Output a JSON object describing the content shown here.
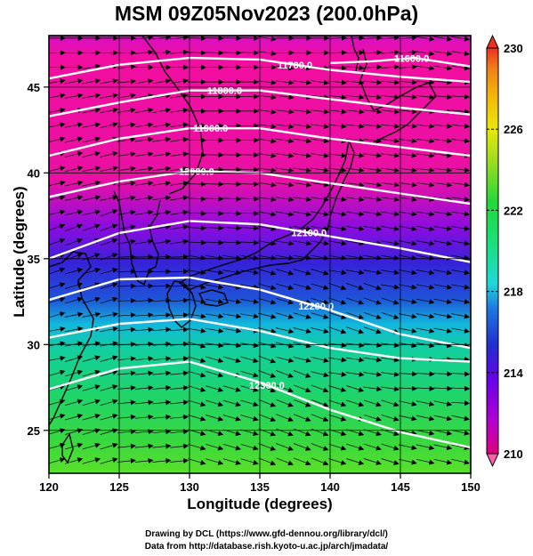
{
  "title": "MSM 09Z05Nov2023 (200.0hPa)",
  "xlabel": "Longitude (degrees)",
  "ylabel": "Latitude  (degrees)",
  "credits": {
    "line1": "Drawing by DCL (https://www.gfd-dennou.org/library/dcl/)",
    "line2": "Data from http://database.rish.kyoto-u.ac.jp/arch/jmadata/"
  },
  "chart_data": {
    "type": "heatmap",
    "xlim": [
      120,
      150
    ],
    "ylim": [
      22.5,
      48
    ],
    "x_ticks": [
      "120",
      "125",
      "130",
      "135",
      "140",
      "145",
      "150"
    ],
    "y_ticks": [
      "25",
      "30",
      "35",
      "40",
      "45"
    ],
    "grid": true,
    "colorbar": {
      "min": 210,
      "max": 230,
      "ticks": [
        "230",
        "226",
        "222",
        "218",
        "214",
        "210"
      ],
      "colors": [
        "#e0007c",
        "#b000d0",
        "#6a00e8",
        "#2030d0",
        "#1f7ae0",
        "#20d8d8",
        "#19e07a",
        "#22d83a",
        "#9cdc20",
        "#e8e80a",
        "#f2b80a",
        "#f08018",
        "#ee3020"
      ]
    },
    "contours": [
      {
        "label": "11600.0",
        "points": [
          [
            140,
            46.4
          ],
          [
            143,
            46.5
          ],
          [
            146,
            46.7
          ],
          [
            150,
            46.2
          ]
        ]
      },
      {
        "label": "11700.0",
        "points": [
          [
            120,
            45.5
          ],
          [
            125,
            46.3
          ],
          [
            130,
            46.7
          ],
          [
            135,
            46.6
          ],
          [
            140,
            46.0
          ],
          [
            145,
            45.6
          ],
          [
            150,
            45.3
          ]
        ]
      },
      {
        "label": "11800.0",
        "points": [
          [
            120,
            43.3
          ],
          [
            125,
            44.1
          ],
          [
            130,
            44.8
          ],
          [
            135,
            44.8
          ],
          [
            140,
            44.3
          ],
          [
            145,
            43.8
          ],
          [
            150,
            43.4
          ]
        ]
      },
      {
        "label": "11900.0",
        "points": [
          [
            120,
            41.0
          ],
          [
            125,
            42.0
          ],
          [
            130,
            42.6
          ],
          [
            135,
            42.6
          ],
          [
            140,
            42.0
          ],
          [
            145,
            41.5
          ],
          [
            150,
            41.0
          ]
        ]
      },
      {
        "label": "12000.0",
        "points": [
          [
            120,
            38.6
          ],
          [
            125,
            39.5
          ],
          [
            130,
            40.1
          ],
          [
            135,
            40.0
          ],
          [
            140,
            39.4
          ],
          [
            145,
            38.8
          ],
          [
            150,
            38.2
          ]
        ]
      },
      {
        "label": "12100.0",
        "points": [
          [
            120,
            35.0
          ],
          [
            125,
            36.5
          ],
          [
            130,
            37.2
          ],
          [
            135,
            37.0
          ],
          [
            140,
            36.3
          ],
          [
            145,
            35.6
          ],
          [
            150,
            34.8
          ]
        ]
      },
      {
        "label": "12200.0",
        "points": [
          [
            120,
            32.6
          ],
          [
            125,
            33.8
          ],
          [
            130,
            33.9
          ],
          [
            135,
            33.2
          ],
          [
            140,
            32.0
          ],
          [
            145,
            30.6
          ],
          [
            150,
            29.8
          ]
        ]
      },
      {
        "label": "",
        "points": [
          [
            120,
            30.4
          ],
          [
            125,
            31.2
          ],
          [
            130,
            31.5
          ],
          [
            135,
            30.8
          ],
          [
            140,
            29.8
          ],
          [
            145,
            29.2
          ],
          [
            150,
            29.0
          ]
        ]
      },
      {
        "label": "12300.0",
        "points": [
          [
            120,
            27.4
          ],
          [
            125,
            28.6
          ],
          [
            130,
            29.0
          ],
          [
            135,
            27.8
          ],
          [
            140,
            26.2
          ],
          [
            145,
            24.9
          ],
          [
            150,
            24.0
          ]
        ]
      }
    ]
  }
}
